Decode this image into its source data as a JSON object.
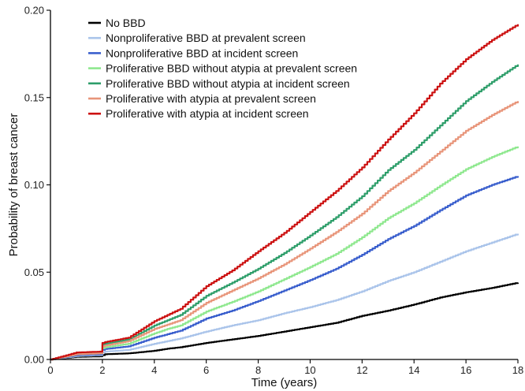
{
  "chart_data": {
    "type": "line",
    "xlabel": "Time (years)",
    "ylabel": "Probability of breast cancer",
    "xlim": [
      0,
      18
    ],
    "ylim": [
      0,
      0.2
    ],
    "x_ticks": [
      0,
      2,
      4,
      6,
      8,
      10,
      12,
      14,
      16,
      18
    ],
    "x_tick_labels": [
      "0",
      "2",
      "4",
      "6",
      "8",
      "10",
      "12",
      "14",
      "16",
      "18"
    ],
    "y_ticks": [
      0,
      0.05,
      0.1,
      0.15,
      0.2
    ],
    "y_tick_labels": [
      "0.00",
      "0.05",
      "0.10",
      "0.15",
      "0.20"
    ],
    "grid": false,
    "legend_position": "top-left",
    "x": [
      0,
      1,
      1.9,
      2,
      2.1,
      3,
      4,
      4.5,
      5,
      6,
      7,
      8,
      9,
      10,
      11,
      12,
      13,
      14,
      15,
      16,
      17,
      18
    ],
    "series": [
      {
        "name": "No BBD",
        "color": "#000000",
        "values": [
          0,
          0.0015,
          0.0018,
          0.0025,
          0.003,
          0.0035,
          0.005,
          0.0062,
          0.007,
          0.0095,
          0.0115,
          0.0135,
          0.016,
          0.0185,
          0.021,
          0.025,
          0.028,
          0.0315,
          0.0355,
          0.0385,
          0.041,
          0.044
        ]
      },
      {
        "name": "Nonproliferative BBD at prevalent screen",
        "color": "#aac4ea",
        "values": [
          0,
          0.002,
          0.0025,
          0.004,
          0.0045,
          0.0055,
          0.009,
          0.0105,
          0.012,
          0.016,
          0.0195,
          0.0225,
          0.0265,
          0.03,
          0.034,
          0.039,
          0.045,
          0.05,
          0.056,
          0.062,
          0.067,
          0.072
        ]
      },
      {
        "name": "Nonproliferative BBD at incident screen",
        "color": "#3a5fcd",
        "values": [
          0,
          0.0025,
          0.003,
          0.0055,
          0.006,
          0.0075,
          0.0125,
          0.0145,
          0.0165,
          0.0235,
          0.028,
          0.0335,
          0.0395,
          0.0455,
          0.052,
          0.06,
          0.069,
          0.0765,
          0.0855,
          0.094,
          0.1,
          0.105
        ]
      },
      {
        "name": "Proliferative BBD without atypia at prevalent screen",
        "color": "#8fe88f",
        "values": [
          0,
          0.003,
          0.0035,
          0.0065,
          0.007,
          0.009,
          0.015,
          0.0175,
          0.0195,
          0.0275,
          0.033,
          0.039,
          0.046,
          0.053,
          0.0605,
          0.07,
          0.081,
          0.0895,
          0.0995,
          0.109,
          0.116,
          0.122
        ]
      },
      {
        "name": "Proliferative BBD without atypia at incident screen",
        "color": "#2e9e6a",
        "values": [
          0,
          0.0035,
          0.004,
          0.0085,
          0.009,
          0.0115,
          0.0195,
          0.0225,
          0.0255,
          0.0365,
          0.044,
          0.052,
          0.061,
          0.071,
          0.0815,
          0.0935,
          0.1085,
          0.12,
          0.134,
          0.148,
          0.159,
          0.169
        ]
      },
      {
        "name": "Proliferative with atypia at prevalent screen",
        "color": "#e8957a",
        "values": [
          0,
          0.003,
          0.0035,
          0.0075,
          0.008,
          0.0105,
          0.0175,
          0.02,
          0.0225,
          0.0325,
          0.0395,
          0.0465,
          0.0545,
          0.0635,
          0.073,
          0.0835,
          0.0965,
          0.107,
          0.119,
          0.131,
          0.14,
          0.148
        ]
      },
      {
        "name": "Proliferative with atypia at incident screen",
        "color": "#cc1111",
        "values": [
          0,
          0.004,
          0.0045,
          0.0095,
          0.01,
          0.0125,
          0.022,
          0.0255,
          0.029,
          0.042,
          0.051,
          0.062,
          0.0725,
          0.0845,
          0.0965,
          0.11,
          0.126,
          0.141,
          0.158,
          0.172,
          0.183,
          0.192
        ]
      }
    ]
  }
}
